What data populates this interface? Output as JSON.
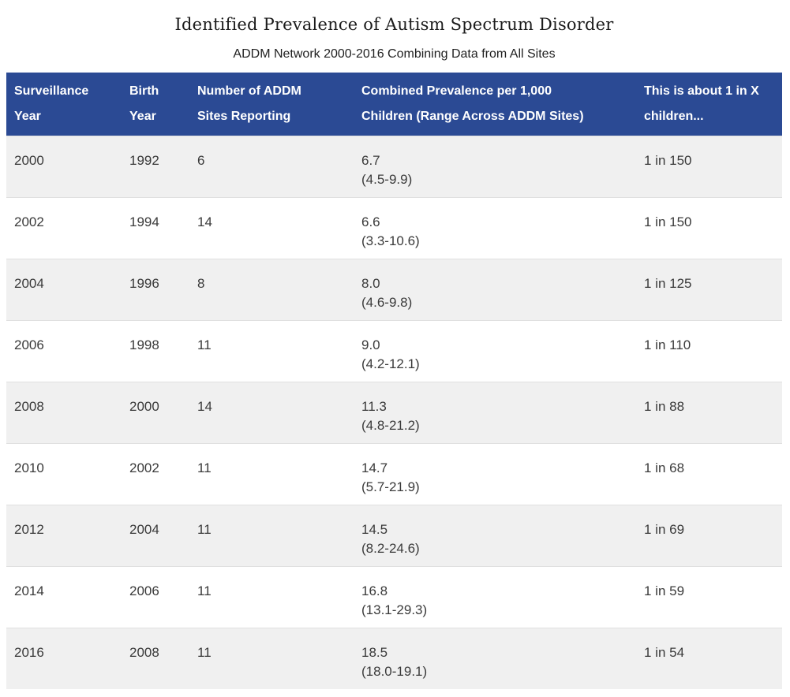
{
  "page": {
    "title": "Identified Prevalence of Autism Spectrum Disorder",
    "subtitle": "ADDM Network 2000-2016 Combining Data from All Sites"
  },
  "colors": {
    "header_bg": "#2b4a94",
    "header_text": "#ffffff",
    "row_stripe_bg": "#f0f0f0",
    "row_bg": "#ffffff",
    "body_text": "#3a3a3a",
    "row_border": "#e0e0e0"
  },
  "table": {
    "columns": [
      {
        "label": "Surveillance\nYear"
      },
      {
        "label": "Birth\nYear"
      },
      {
        "label": "Number of ADDM\nSites Reporting"
      },
      {
        "label": "Combined Prevalence per 1,000\nChildren (Range Across ADDM Sites)"
      },
      {
        "label": "This is about 1 in X\nchildren..."
      }
    ],
    "rows": [
      {
        "surveillance_year": "2000",
        "birth_year": "1992",
        "sites": "6",
        "prevalence": "6.7",
        "range": "(4.5-9.9)",
        "ratio": "1 in 150"
      },
      {
        "surveillance_year": "2002",
        "birth_year": "1994",
        "sites": "14",
        "prevalence": "6.6",
        "range": "(3.3-10.6)",
        "ratio": "1 in 150"
      },
      {
        "surveillance_year": "2004",
        "birth_year": "1996",
        "sites": "8",
        "prevalence": "8.0",
        "range": "(4.6-9.8)",
        "ratio": "1 in 125"
      },
      {
        "surveillance_year": "2006",
        "birth_year": "1998",
        "sites": "11",
        "prevalence": "9.0",
        "range": "(4.2-12.1)",
        "ratio": "1 in 110"
      },
      {
        "surveillance_year": "2008",
        "birth_year": "2000",
        "sites": "14",
        "prevalence": "11.3",
        "range": "(4.8-21.2)",
        "ratio": "1 in 88"
      },
      {
        "surveillance_year": "2010",
        "birth_year": "2002",
        "sites": "11",
        "prevalence": "14.7",
        "range": "(5.7-21.9)",
        "ratio": "1 in 68"
      },
      {
        "surveillance_year": "2012",
        "birth_year": "2004",
        "sites": "11",
        "prevalence": "14.5",
        "range": "(8.2-24.6)",
        "ratio": "1 in 69"
      },
      {
        "surveillance_year": "2014",
        "birth_year": "2006",
        "sites": "11",
        "prevalence": "16.8",
        "range": "(13.1-29.3)",
        "ratio": "1 in 59"
      },
      {
        "surveillance_year": "2016",
        "birth_year": "2008",
        "sites": "11",
        "prevalence": "18.5",
        "range": "(18.0-19.1)",
        "ratio": "1 in 54"
      }
    ]
  },
  "chart_data": {
    "type": "table",
    "title": "Identified Prevalence of Autism Spectrum Disorder",
    "subtitle": "ADDM Network 2000-2016 Combining Data from All Sites",
    "columns": [
      "Surveillance Year",
      "Birth Year",
      "Number of ADDM Sites Reporting",
      "Combined Prevalence per 1,000 Children (Range Across ADDM Sites)",
      "This is about 1 in X children..."
    ],
    "rows": [
      [
        "2000",
        "1992",
        6,
        "6.7 (4.5-9.9)",
        "1 in 150"
      ],
      [
        "2002",
        "1994",
        14,
        "6.6 (3.3-10.6)",
        "1 in 150"
      ],
      [
        "2004",
        "1996",
        8,
        "8.0 (4.6-9.8)",
        "1 in 125"
      ],
      [
        "2006",
        "1998",
        11,
        "9.0 (4.2-12.1)",
        "1 in 110"
      ],
      [
        "2008",
        "2000",
        14,
        "11.3 (4.8-21.2)",
        "1 in 88"
      ],
      [
        "2010",
        "2002",
        11,
        "14.7 (5.7-21.9)",
        "1 in 68"
      ],
      [
        "2012",
        "2004",
        11,
        "14.5 (8.2-24.6)",
        "1 in 69"
      ],
      [
        "2014",
        "2006",
        11,
        "16.8 (13.1-29.3)",
        "1 in 59"
      ],
      [
        "2016",
        "2008",
        11,
        "18.5 (18.0-19.1)",
        "1 in 54"
      ]
    ],
    "prevalence_per_1000": [
      6.7,
      6.6,
      8.0,
      9.0,
      11.3,
      14.7,
      14.5,
      16.8,
      18.5
    ],
    "layout": "striped rows, blue header, no outer border"
  }
}
